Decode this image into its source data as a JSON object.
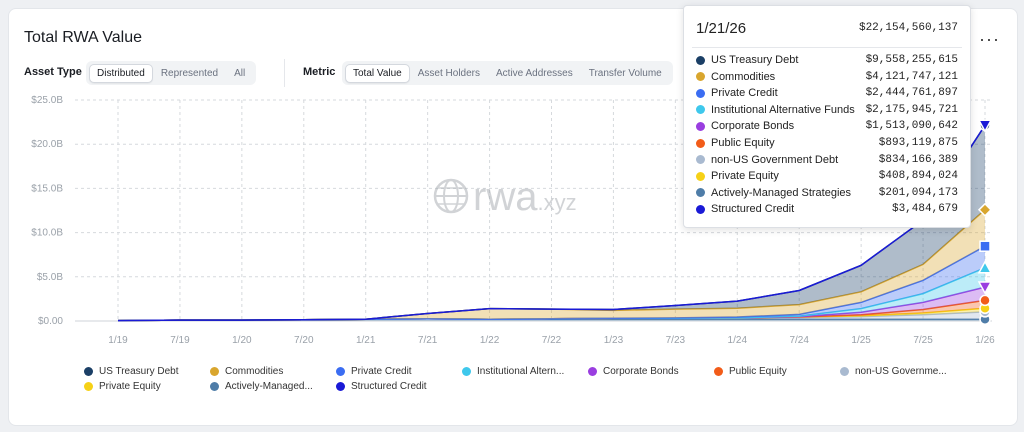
{
  "title": "Total RWA Value",
  "more_label": "···",
  "asset_type": {
    "label": "Asset Type",
    "options": [
      "Distributed",
      "Represented",
      "All"
    ],
    "selected": "Distributed"
  },
  "metric": {
    "label": "Metric",
    "options": [
      "Total Value",
      "Asset Holders",
      "Active Addresses",
      "Transfer Volume"
    ],
    "selected": "Total Value"
  },
  "watermark": "rwa.xyz",
  "tooltip": {
    "date": "1/21/26",
    "total": "$22,154,560,137",
    "rows": [
      {
        "name": "US Treasury Debt",
        "value": "$9,558,255,615",
        "color": "#1b3f66"
      },
      {
        "name": "Commodities",
        "value": "$4,121,747,121",
        "color": "#d9a62e"
      },
      {
        "name": "Private Credit",
        "value": "$2,444,761,897",
        "color": "#3b6df2"
      },
      {
        "name": "Institutional Alternative Funds",
        "value": "$2,175,945,721",
        "color": "#3fc8ec"
      },
      {
        "name": "Corporate Bonds",
        "value": "$1,513,090,642",
        "color": "#9a3ee0"
      },
      {
        "name": "Public Equity",
        "value": "$893,119,875",
        "color": "#f25c19"
      },
      {
        "name": "non-US Government Debt",
        "value": "$834,166,389",
        "color": "#a9bad0"
      },
      {
        "name": "Private Equity",
        "value": "$408,894,024",
        "color": "#f6d117"
      },
      {
        "name": "Actively-Managed Strategies",
        "value": "$201,094,173",
        "color": "#4f7da8"
      },
      {
        "name": "Structured Credit",
        "value": "$3,484,679",
        "color": "#1a1ad6"
      }
    ]
  },
  "legend": [
    {
      "name": "US Treasury Debt",
      "color": "#1b3f66"
    },
    {
      "name": "Commodities",
      "color": "#d9a62e"
    },
    {
      "name": "Private Credit",
      "color": "#3b6df2"
    },
    {
      "name": "Institutional Altern...",
      "color": "#3fc8ec"
    },
    {
      "name": "Corporate Bonds",
      "color": "#9a3ee0"
    },
    {
      "name": "Public Equity",
      "color": "#f25c19"
    },
    {
      "name": "non-US Governme...",
      "color": "#a9bad0"
    },
    {
      "name": "Private Equity",
      "color": "#f6d117"
    },
    {
      "name": "Actively-Managed...",
      "color": "#4f7da8"
    },
    {
      "name": "Structured Credit",
      "color": "#1a1ad6"
    }
  ],
  "chart_data": {
    "type": "area",
    "stacked": true,
    "x": [
      "1/19",
      "7/19",
      "1/20",
      "7/20",
      "1/21",
      "7/21",
      "1/22",
      "7/22",
      "1/23",
      "7/23",
      "1/24",
      "7/24",
      "1/25",
      "7/25",
      "1/26"
    ],
    "xlabels": [
      "1/19",
      "7/19",
      "1/20",
      "7/20",
      "1/21",
      "7/21",
      "1/22",
      "7/22",
      "1/23",
      "7/23",
      "1/24",
      "7/24",
      "1/25",
      "7/25",
      "1/26"
    ],
    "yticks": [
      "$0.00",
      "$5.0B",
      "$10.0B",
      "$15.0B",
      "$20.0B",
      "$25.0B"
    ],
    "ylim": [
      0,
      25
    ],
    "yunit": "B",
    "grid": true,
    "series": [
      {
        "name": "US Treasury Debt",
        "color": "#1b3f66",
        "values": [
          0,
          0,
          0,
          0,
          0,
          0,
          0,
          0,
          0.1,
          0.4,
          0.8,
          1.6,
          3.0,
          5.0,
          9.56
        ]
      },
      {
        "name": "Commodities",
        "color": "#d9a62e",
        "values": [
          0,
          0,
          0,
          0,
          0,
          0.6,
          1.2,
          1.1,
          0.9,
          1.0,
          1.0,
          1.1,
          1.2,
          1.8,
          4.12
        ]
      },
      {
        "name": "Private Credit",
        "color": "#3b6df2",
        "values": [
          0,
          0,
          0,
          0,
          0,
          0,
          0,
          0,
          0,
          0.05,
          0.1,
          0.2,
          0.7,
          1.5,
          2.44
        ]
      },
      {
        "name": "Institutional Alternative Funds",
        "color": "#3fc8ec",
        "values": [
          0,
          0,
          0,
          0,
          0,
          0,
          0,
          0,
          0,
          0,
          0,
          0.05,
          0.4,
          1.0,
          2.18
        ]
      },
      {
        "name": "Corporate Bonds",
        "color": "#9a3ee0",
        "values": [
          0,
          0,
          0,
          0,
          0,
          0,
          0,
          0,
          0,
          0,
          0,
          0.05,
          0.3,
          0.8,
          1.51
        ]
      },
      {
        "name": "Public Equity",
        "color": "#f25c19",
        "values": [
          0,
          0,
          0,
          0,
          0,
          0,
          0,
          0,
          0,
          0,
          0,
          0,
          0.1,
          0.4,
          0.89
        ]
      },
      {
        "name": "non-US Government Debt",
        "color": "#a9bad0",
        "values": [
          0,
          0,
          0,
          0,
          0,
          0,
          0,
          0.05,
          0.1,
          0.1,
          0.15,
          0.2,
          0.3,
          0.5,
          0.83
        ]
      },
      {
        "name": "Private Equity",
        "color": "#f6d117",
        "values": [
          0,
          0,
          0,
          0,
          0,
          0,
          0,
          0,
          0,
          0,
          0,
          0.05,
          0.1,
          0.2,
          0.41
        ]
      },
      {
        "name": "Actively-Managed Strategies",
        "color": "#4f7da8",
        "values": [
          0.05,
          0.1,
          0.1,
          0.15,
          0.2,
          0.25,
          0.2,
          0.2,
          0.2,
          0.2,
          0.2,
          0.2,
          0.2,
          0.2,
          0.2
        ]
      },
      {
        "name": "Structured Credit",
        "color": "#1a1ad6",
        "values": [
          0,
          0,
          0,
          0,
          0,
          0,
          0,
          0,
          0,
          0,
          0,
          0,
          0,
          0,
          0.003
        ]
      }
    ]
  }
}
